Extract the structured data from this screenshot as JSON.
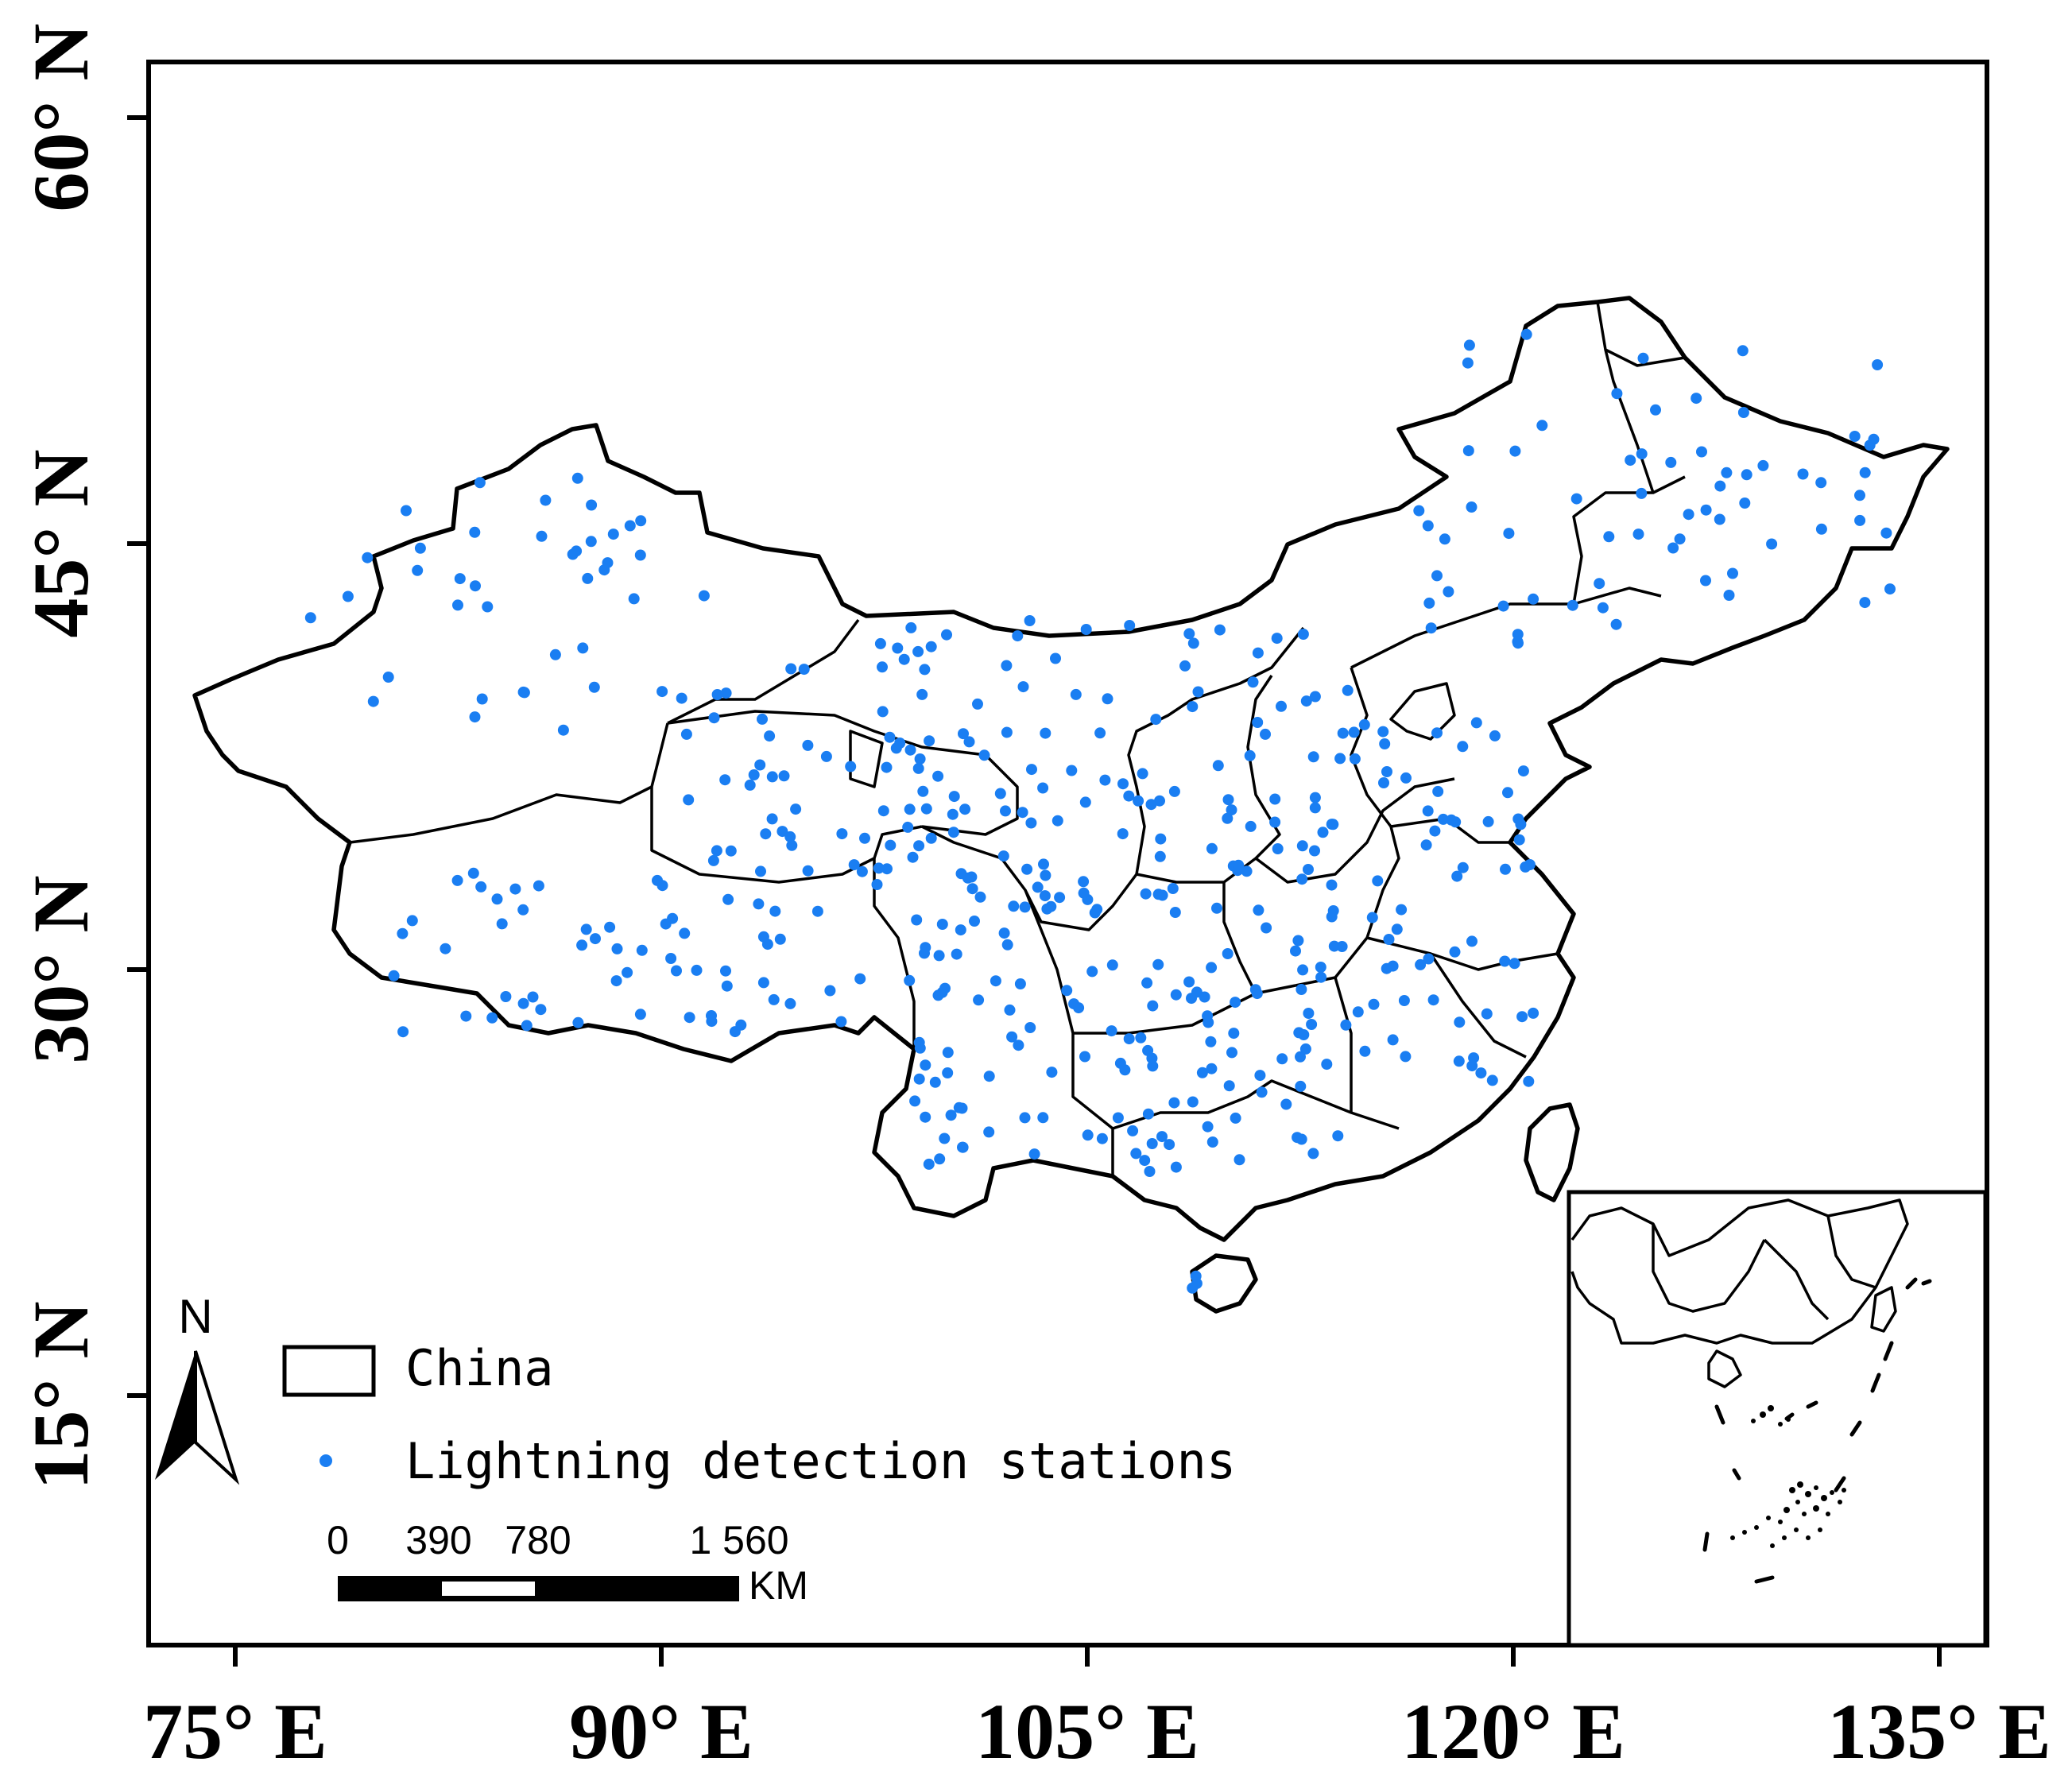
{
  "map": {
    "x_axis": {
      "ticks": [
        "75° E",
        "90° E",
        "105° E",
        "120° E",
        "135° E"
      ]
    },
    "y_axis": {
      "ticks": [
        "60° N",
        "45° N",
        "30° N",
        "15° N"
      ]
    }
  },
  "legend": {
    "items": [
      {
        "symbol": "polygon",
        "label": "China"
      },
      {
        "symbol": "point",
        "label": "Lightning detection stations"
      }
    ]
  },
  "scale_bar": {
    "labels": [
      "0",
      "390",
      "780",
      "1 560"
    ],
    "unit": "KM"
  },
  "north_arrow": {
    "label": "N"
  },
  "colors": {
    "station": "#1a7ef2",
    "boundary": "#000000"
  }
}
